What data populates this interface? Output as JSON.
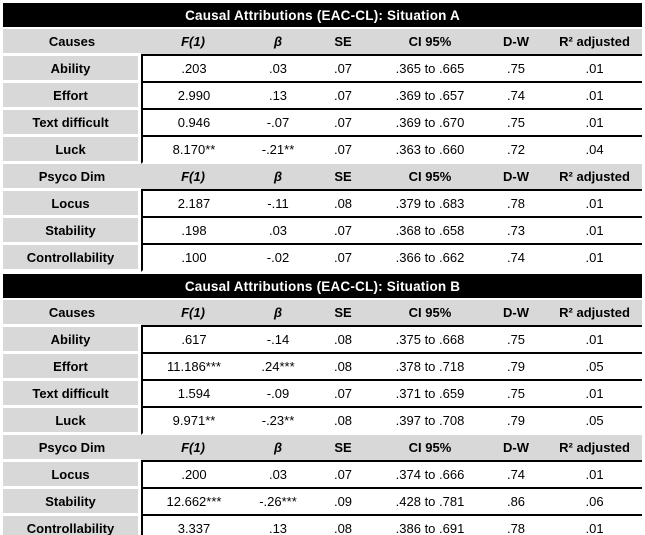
{
  "colors": {
    "page_bg": "#ffffff",
    "title_bg": "#000000",
    "title_text": "#ffffff",
    "header_bg": "#d8d8d8",
    "rule": "#000000"
  },
  "chart_data": {
    "type": "table",
    "note": "regression statistics table, two sections"
  },
  "table": {
    "sections": [
      {
        "title": "Causal Attributions (EAC-CL): Situation A",
        "groups": [
          {
            "header": [
              "Causes",
              "F(1)",
              "β",
              "SE",
              "CI 95%",
              "D-W",
              "R² adjusted"
            ],
            "rows": [
              [
                "Ability",
                ".203",
                ".03",
                ".07",
                ".365 to .665",
                ".75",
                ".01"
              ],
              [
                "Effort",
                "2.990",
                ".13",
                ".07",
                ".369 to .657",
                ".74",
                ".01"
              ],
              [
                "Text difficult",
                "0.946",
                "-.07",
                ".07",
                ".369 to .670",
                ".75",
                ".01"
              ],
              [
                "Luck",
                "8.170**",
                "-.21**",
                ".07",
                ".363 to .660",
                ".72",
                ".04"
              ]
            ]
          },
          {
            "header": [
              "Psyco Dim",
              "F(1)",
              "β",
              "SE",
              "CI 95%",
              "D-W",
              "R² adjusted"
            ],
            "rows": [
              [
                "Locus",
                "2.187",
                "-.11",
                ".08",
                ".379 to .683",
                ".78",
                ".01"
              ],
              [
                "Stability",
                ".198",
                ".03",
                ".07",
                ".368 to .658",
                ".73",
                ".01"
              ],
              [
                "Controllability",
                ".100",
                "-.02",
                ".07",
                ".366 to .662",
                ".74",
                ".01"
              ]
            ]
          }
        ]
      },
      {
        "title": "Causal Attributions (EAC-CL): Situation B",
        "groups": [
          {
            "header": [
              "Causes",
              "F(1)",
              "β",
              "SE",
              "CI 95%",
              "D-W",
              "R² adjusted"
            ],
            "rows": [
              [
                "Ability",
                ".617",
                "-.14",
                ".08",
                ".375 to .668",
                ".75",
                ".01"
              ],
              [
                "Effort",
                "11.186***",
                ".24***",
                ".08",
                ".378 to .718",
                ".79",
                ".05"
              ],
              [
                "Text difficult",
                "1.594",
                "-.09",
                ".07",
                ".371 to .659",
                ".75",
                ".01"
              ],
              [
                "Luck",
                "9.971**",
                "-.23**",
                ".08",
                ".397 to .708",
                ".79",
                ".05"
              ]
            ]
          },
          {
            "header": [
              "Psyco Dim",
              "F(1)",
              "β",
              "SE",
              "CI 95%",
              "D-W",
              "R² adjusted"
            ],
            "rows": [
              [
                "Locus",
                ".200",
                ".03",
                ".07",
                ".374 to .666",
                ".74",
                ".01"
              ],
              [
                "Stability",
                "12.662***",
                "-.26***",
                ".09",
                ".428 to .781",
                ".86",
                ".06"
              ],
              [
                "Controllability",
                "3.337",
                ".13",
                ".08",
                ".386 to .691",
                ".78",
                ".01"
              ]
            ]
          }
        ]
      }
    ]
  }
}
